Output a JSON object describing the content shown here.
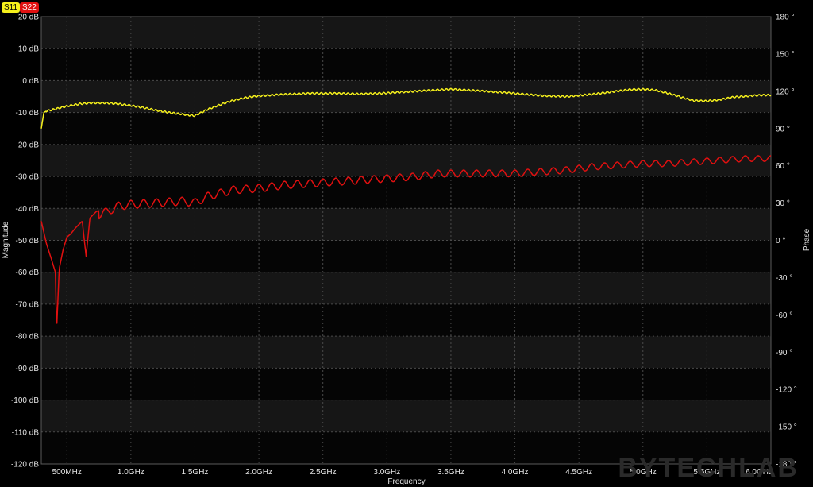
{
  "legend": [
    {
      "label": "S11",
      "color": "#f5f01c"
    },
    {
      "label": "S22",
      "color": "#e01010"
    }
  ],
  "watermark": "BYTECHLAB",
  "chart_data": {
    "type": "line",
    "xlabel": "Frequency",
    "ylabel": "Magnitude",
    "y2label": "Phase",
    "x_unit": "GHz",
    "xlim": [
      0.3,
      6.0
    ],
    "ylim": [
      -120,
      20
    ],
    "y2lim": [
      -180,
      180
    ],
    "grid": true,
    "legend_position": "top-left",
    "x_ticks": [
      {
        "v": 0.5,
        "label": "500MHz"
      },
      {
        "v": 1.0,
        "label": "1.0GHz"
      },
      {
        "v": 1.5,
        "label": "1.5GHz"
      },
      {
        "v": 2.0,
        "label": "2.0GHz"
      },
      {
        "v": 2.5,
        "label": "2.5GHz"
      },
      {
        "v": 3.0,
        "label": "3.0GHz"
      },
      {
        "v": 3.5,
        "label": "3.5GHz"
      },
      {
        "v": 4.0,
        "label": "4.0GHz"
      },
      {
        "v": 4.5,
        "label": "4.5GHz"
      },
      {
        "v": 5.0,
        "label": "5.0GHz"
      },
      {
        "v": 5.5,
        "label": "5.5GHz"
      },
      {
        "v": 6.0,
        "label": "6.0GHz"
      }
    ],
    "y_ticks": [
      {
        "v": 20,
        "label": "20 dB"
      },
      {
        "v": 10,
        "label": "10 dB"
      },
      {
        "v": 0,
        "label": "0 dB"
      },
      {
        "v": -10,
        "label": "-10 dB"
      },
      {
        "v": -20,
        "label": "-20 dB"
      },
      {
        "v": -30,
        "label": "-30 dB"
      },
      {
        "v": -40,
        "label": "-40 dB"
      },
      {
        "v": -50,
        "label": "-50 dB"
      },
      {
        "v": -60,
        "label": "-60 dB"
      },
      {
        "v": -70,
        "label": "-70 dB"
      },
      {
        "v": -80,
        "label": "-80 dB"
      },
      {
        "v": -90,
        "label": "-90 dB"
      },
      {
        "v": -100,
        "label": "-100 dB"
      },
      {
        "v": -110,
        "label": "-110 dB"
      },
      {
        "v": -120,
        "label": "-120 dB"
      }
    ],
    "y2_ticks": [
      {
        "v": 180,
        "label": "180 °"
      },
      {
        "v": 150,
        "label": "150 °"
      },
      {
        "v": 120,
        "label": "120 °"
      },
      {
        "v": 90,
        "label": "90 °"
      },
      {
        "v": 60,
        "label": "60 °"
      },
      {
        "v": 30,
        "label": "30 °"
      },
      {
        "v": 0,
        "label": "0 °"
      },
      {
        "v": -30,
        "label": "-30 °"
      },
      {
        "v": -60,
        "label": "-60 °"
      },
      {
        "v": -90,
        "label": "-90 °"
      },
      {
        "v": -120,
        "label": "-120 °"
      },
      {
        "v": -150,
        "label": "-150 °"
      },
      {
        "v": -180,
        "label": "-180 °"
      }
    ],
    "series": [
      {
        "name": "S11",
        "color": "#f5f01c",
        "x": [
          0.3,
          0.32,
          0.34,
          0.4,
          0.5,
          0.6,
          0.7,
          0.8,
          0.9,
          1.0,
          1.1,
          1.2,
          1.3,
          1.4,
          1.45,
          1.5,
          1.55,
          1.6,
          1.7,
          1.8,
          1.9,
          2.0,
          2.2,
          2.4,
          2.6,
          2.8,
          3.0,
          3.2,
          3.4,
          3.5,
          3.6,
          3.8,
          4.0,
          4.2,
          4.4,
          4.6,
          4.8,
          4.9,
          5.0,
          5.1,
          5.2,
          5.3,
          5.4,
          5.5,
          5.6,
          5.7,
          5.8,
          5.9,
          6.0
        ],
        "y": [
          -15,
          -10,
          -9.5,
          -9,
          -8,
          -7.3,
          -7,
          -7,
          -7.3,
          -7.8,
          -8.5,
          -9.3,
          -10,
          -10.5,
          -10.8,
          -11,
          -10,
          -9,
          -7.5,
          -6.2,
          -5.3,
          -4.8,
          -4.3,
          -4,
          -4,
          -4.2,
          -3.9,
          -3.4,
          -2.9,
          -2.7,
          -2.9,
          -3.4,
          -4,
          -4.7,
          -5,
          -4.3,
          -3.3,
          -2.8,
          -2.7,
          -3,
          -4,
          -5.2,
          -6.3,
          -6.4,
          -6,
          -5.2,
          -4.9,
          -4.6,
          -4.5
        ]
      },
      {
        "name": "S22",
        "color": "#e01010",
        "x": [
          0.3,
          0.34,
          0.38,
          0.41,
          0.42,
          0.44,
          0.47,
          0.5,
          0.53,
          0.57,
          0.62,
          0.65,
          0.68,
          0.73,
          0.8,
          0.9,
          1.0,
          1.2,
          1.4,
          1.5,
          1.6,
          1.8,
          2.0,
          2.2,
          2.4,
          2.6,
          2.8,
          3.0,
          3.2,
          3.4,
          3.6,
          3.8,
          4.0,
          4.2,
          4.4,
          4.6,
          4.8,
          5.0,
          5.2,
          5.4,
          5.6,
          5.8,
          6.0
        ],
        "y": [
          -44,
          -51,
          -56,
          -60,
          -78,
          -59,
          -53,
          -49,
          -48,
          -46,
          -44,
          -55,
          -43,
          -41,
          -40,
          -38,
          -37.5,
          -37,
          -36.5,
          -37,
          -35,
          -33,
          -32.5,
          -31.5,
          -31,
          -30.5,
          -30,
          -29.5,
          -29,
          -28,
          -28,
          -28,
          -28,
          -27.5,
          -27,
          -26,
          -25.5,
          -25,
          -25,
          -24.5,
          -24,
          -23.5,
          -23.5
        ]
      }
    ]
  }
}
